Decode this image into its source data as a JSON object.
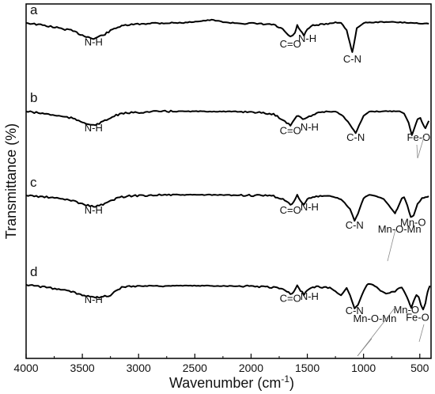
{
  "chart_data": {
    "type": "line",
    "title": "",
    "xlabel": "Wavenumber (cm",
    "xlabel_sup": "-1",
    "xlabel_end": ")",
    "ylabel": "Transmittance (%)",
    "xlim": [
      4000,
      400
    ],
    "x_ticks": [
      "4000",
      "3500",
      "3000",
      "2500",
      "2000",
      "1500",
      "1000",
      "500"
    ],
    "x_tick_values": [
      4000,
      3500,
      3000,
      2500,
      2000,
      1500,
      1000,
      500
    ],
    "grid": false,
    "series": [
      {
        "panel": "a",
        "points": [
          [
            4000,
            0.8
          ],
          [
            3800,
            0.62
          ],
          [
            3600,
            0.4
          ],
          [
            3500,
            0.15
          ],
          [
            3400,
            -0.05
          ],
          [
            3300,
            0.2
          ],
          [
            3200,
            0.55
          ],
          [
            3100,
            0.68
          ],
          [
            2900,
            0.78
          ],
          [
            2600,
            0.8
          ],
          [
            2350,
            0.95
          ],
          [
            2200,
            0.8
          ],
          [
            2000,
            0.76
          ],
          [
            1800,
            0.7
          ],
          [
            1720,
            0.45
          ],
          [
            1650,
            0.05
          ],
          [
            1610,
            0.25
          ],
          [
            1590,
            0.65
          ],
          [
            1560,
            0.4
          ],
          [
            1530,
            0.1
          ],
          [
            1500,
            0.45
          ],
          [
            1450,
            0.65
          ],
          [
            1350,
            0.72
          ],
          [
            1250,
            0.82
          ],
          [
            1200,
            0.8
          ],
          [
            1150,
            0.4
          ],
          [
            1120,
            -0.3
          ],
          [
            1100,
            -0.75
          ],
          [
            1085,
            -0.3
          ],
          [
            1060,
            0.5
          ],
          [
            1000,
            0.8
          ],
          [
            800,
            0.85
          ],
          [
            600,
            0.8
          ],
          [
            420,
            0.75
          ]
        ],
        "annotations": [
          {
            "text": "N-H",
            "x": 3400,
            "y": -0.4
          },
          {
            "text": "C=O",
            "x": 1650,
            "y": -0.5
          },
          {
            "text": "N-H",
            "x": 1500,
            "y": -0.2
          },
          {
            "text": "C-N",
            "x": 1100,
            "y": -1.3
          }
        ]
      },
      {
        "panel": "b",
        "points": [
          [
            4000,
            0.8
          ],
          [
            3800,
            0.65
          ],
          [
            3600,
            0.45
          ],
          [
            3500,
            0.25
          ],
          [
            3400,
            0.05
          ],
          [
            3300,
            0.3
          ],
          [
            3200,
            0.6
          ],
          [
            3100,
            0.72
          ],
          [
            2800,
            0.8
          ],
          [
            2400,
            0.8
          ],
          [
            2000,
            0.78
          ],
          [
            1800,
            0.65
          ],
          [
            1700,
            0.3
          ],
          [
            1650,
            0.05
          ],
          [
            1610,
            0.45
          ],
          [
            1580,
            0.6
          ],
          [
            1540,
            0.35
          ],
          [
            1500,
            0.5
          ],
          [
            1400,
            0.75
          ],
          [
            1250,
            0.8
          ],
          [
            1180,
            0.55
          ],
          [
            1120,
            0.1
          ],
          [
            1070,
            -0.35
          ],
          [
            1040,
            0.05
          ],
          [
            1000,
            0.55
          ],
          [
            950,
            0.78
          ],
          [
            850,
            0.8
          ],
          [
            680,
            0.82
          ],
          [
            640,
            0.7
          ],
          [
            600,
            0.2
          ],
          [
            570,
            -0.45
          ],
          [
            550,
            -0.1
          ],
          [
            520,
            0.4
          ],
          [
            495,
            0.45
          ],
          [
            470,
            0.1
          ],
          [
            450,
            -0.1
          ],
          [
            420,
            0.3
          ]
        ],
        "annotations": [
          {
            "text": "N-H",
            "x": 3400,
            "y": -0.25
          },
          {
            "text": "C=O",
            "x": 1650,
            "y": -0.4
          },
          {
            "text": "N-H",
            "x": 1480,
            "y": -0.2
          },
          {
            "text": "C-N",
            "x": 1070,
            "y": -0.75
          },
          {
            "text": "Fe-O",
            "x": 510,
            "y": -0.75
          }
        ]
      },
      {
        "panel": "c",
        "points": [
          [
            4000,
            0.75
          ],
          [
            3800,
            0.65
          ],
          [
            3600,
            0.5
          ],
          [
            3500,
            0.3
          ],
          [
            3400,
            0.15
          ],
          [
            3300,
            0.3
          ],
          [
            3200,
            0.6
          ],
          [
            3100,
            0.72
          ],
          [
            2800,
            0.78
          ],
          [
            2400,
            0.78
          ],
          [
            2000,
            0.75
          ],
          [
            1800,
            0.72
          ],
          [
            1700,
            0.5
          ],
          [
            1650,
            0.25
          ],
          [
            1620,
            0.4
          ],
          [
            1590,
            0.75
          ],
          [
            1560,
            0.5
          ],
          [
            1530,
            0.25
          ],
          [
            1500,
            0.55
          ],
          [
            1420,
            0.7
          ],
          [
            1300,
            0.72
          ],
          [
            1200,
            0.55
          ],
          [
            1120,
            0.05
          ],
          [
            1080,
            -0.6
          ],
          [
            1050,
            -0.2
          ],
          [
            1000,
            0.6
          ],
          [
            950,
            0.8
          ],
          [
            900,
            0.75
          ],
          [
            820,
            0.55
          ],
          [
            760,
            0.1
          ],
          [
            720,
            -0.2
          ],
          [
            700,
            0.05
          ],
          [
            660,
            0.6
          ],
          [
            640,
            0.65
          ],
          [
            610,
            0.2
          ],
          [
            580,
            -0.4
          ],
          [
            555,
            -0.3
          ],
          [
            520,
            0.3
          ],
          [
            480,
            0.6
          ],
          [
            450,
            0.65
          ],
          [
            420,
            0.7
          ]
        ],
        "annotations": [
          {
            "text": "N-H",
            "x": 3400,
            "y": -0.2
          },
          {
            "text": "C=O",
            "x": 1650,
            "y": -0.2
          },
          {
            "text": "N-H",
            "x": 1480,
            "y": -0.05
          },
          {
            "text": "C-N",
            "x": 1080,
            "y": -1.0
          },
          {
            "text": "Mn-O-Mn",
            "x": 680,
            "y": -1.2
          },
          {
            "text": "Mn-O",
            "x": 560,
            "y": -0.85
          }
        ]
      },
      {
        "panel": "d",
        "points": [
          [
            4000,
            0.75
          ],
          [
            3800,
            0.6
          ],
          [
            3600,
            0.4
          ],
          [
            3500,
            0.2
          ],
          [
            3400,
            0.15
          ],
          [
            3350,
            0.05
          ],
          [
            3300,
            0.15
          ],
          [
            3250,
            0.2
          ],
          [
            3200,
            0.45
          ],
          [
            3150,
            0.6
          ],
          [
            3100,
            0.68
          ],
          [
            2800,
            0.7
          ],
          [
            2400,
            0.7
          ],
          [
            2000,
            0.68
          ],
          [
            1800,
            0.62
          ],
          [
            1700,
            0.5
          ],
          [
            1650,
            0.25
          ],
          [
            1620,
            0.4
          ],
          [
            1590,
            0.7
          ],
          [
            1560,
            0.45
          ],
          [
            1530,
            0.25
          ],
          [
            1500,
            0.5
          ],
          [
            1420,
            0.65
          ],
          [
            1300,
            0.6
          ],
          [
            1250,
            0.4
          ],
          [
            1200,
            0.2
          ],
          [
            1150,
            0.6
          ],
          [
            1120,
            0.2
          ],
          [
            1080,
            -0.5
          ],
          [
            1050,
            -0.3
          ],
          [
            1000,
            0.4
          ],
          [
            970,
            0.75
          ],
          [
            950,
            0.8
          ],
          [
            900,
            0.7
          ],
          [
            850,
            0.45
          ],
          [
            800,
            0.3
          ],
          [
            720,
            0.4
          ],
          [
            690,
            0.55
          ],
          [
            660,
            0.6
          ],
          [
            630,
            0.3
          ],
          [
            600,
            -0.1
          ],
          [
            575,
            -0.45
          ],
          [
            555,
            -0.1
          ],
          [
            530,
            0.2
          ],
          [
            510,
            0.1
          ],
          [
            490,
            -0.3
          ],
          [
            470,
            -0.55
          ],
          [
            450,
            -0.2
          ],
          [
            430,
            0.4
          ],
          [
            410,
            0.7
          ]
        ],
        "annotations": [
          {
            "text": "N-H",
            "x": 3400,
            "y": -0.2
          },
          {
            "text": "C=O",
            "x": 1650,
            "y": -0.15
          },
          {
            "text": "N-H",
            "x": 1480,
            "y": -0.05
          },
          {
            "text": "C-N",
            "x": 1080,
            "y": -0.8
          },
          {
            "text": "Mn-O-Mn",
            "x": 900,
            "y": -1.2
          },
          {
            "text": "Mn-O",
            "x": 620,
            "y": -0.75
          },
          {
            "text": "Fe-O",
            "x": 520,
            "y": -1.15
          }
        ]
      }
    ]
  }
}
